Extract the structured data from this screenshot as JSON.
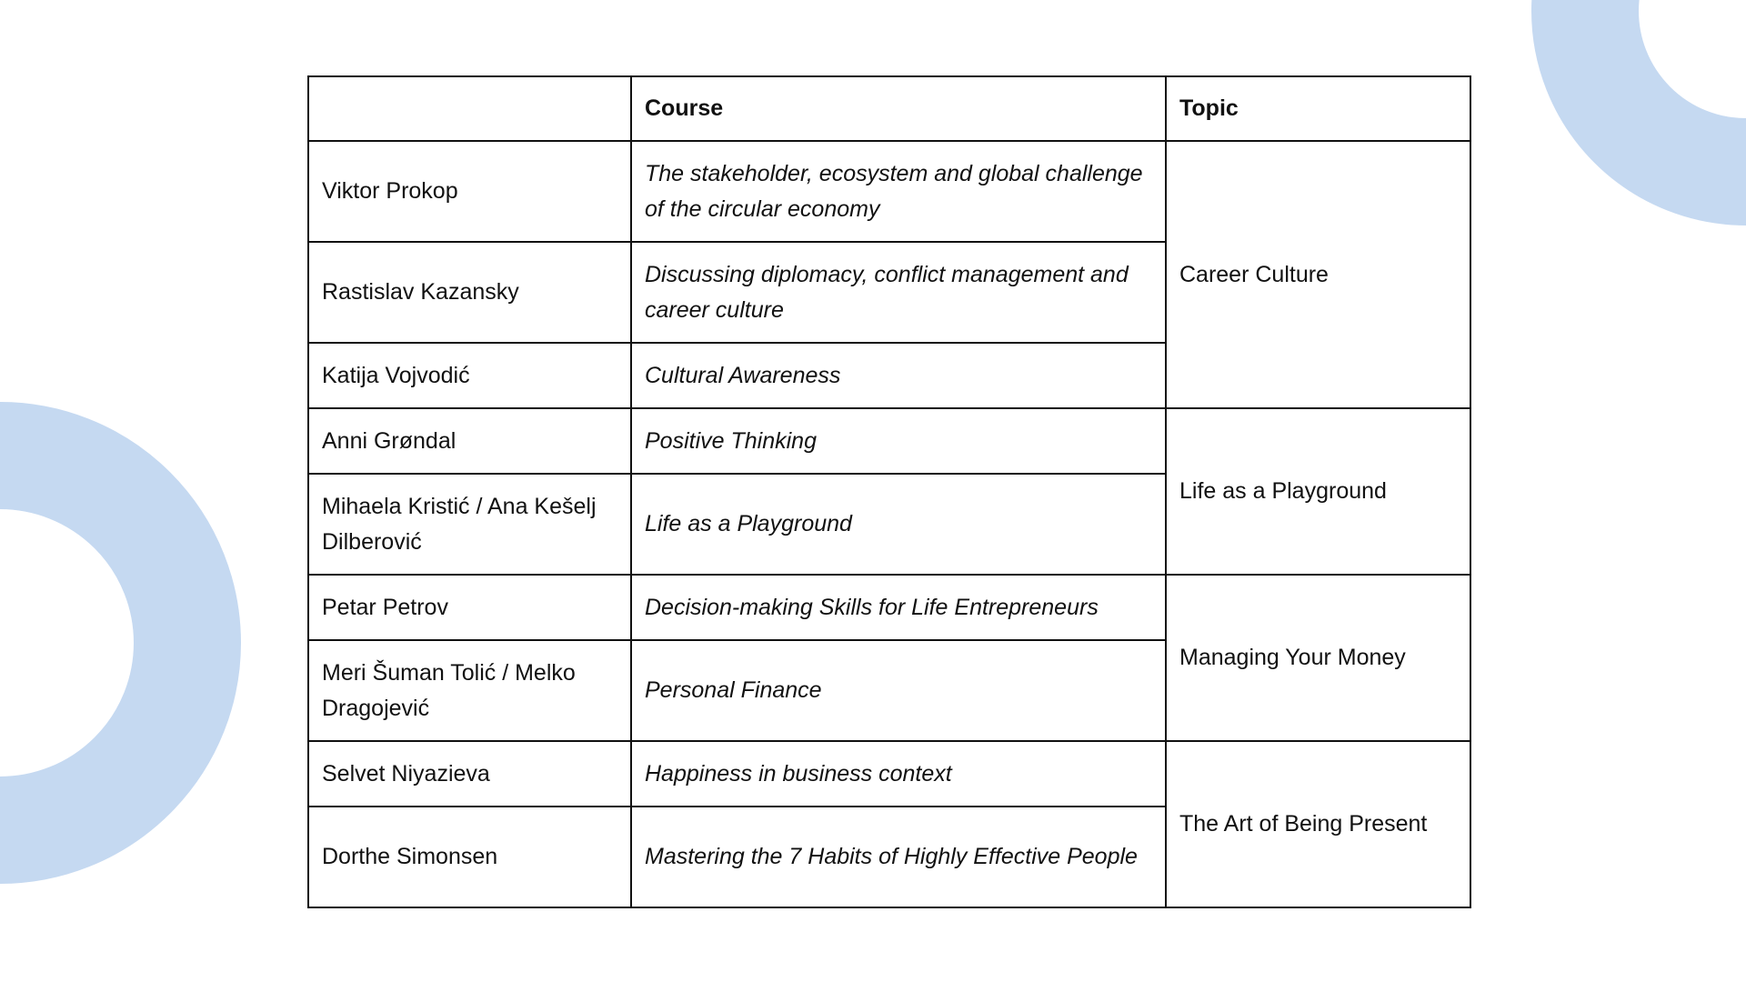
{
  "colors": {
    "accent": "#c5d9f1",
    "border": "#111111"
  },
  "table": {
    "headers": [
      "",
      "Course",
      "Topic"
    ],
    "rows": [
      {
        "name": "Viktor Prokop",
        "course": "The stakeholder, ecosystem and global challenge of the circular economy",
        "topic": "Career Culture"
      },
      {
        "name": "Rastislav Kazansky",
        "course": "Discussing diplomacy, conflict management and career culture"
      },
      {
        "name": "Katija Vojvodić",
        "course": "Cultural Awareness"
      },
      {
        "name": "Anni Grøndal",
        "course": "Positive Thinking",
        "topic": "Life as a Playground"
      },
      {
        "name": "Mihaela Kristić / Ana Kešelj Dilberović",
        "course": "Life as a Playground"
      },
      {
        "name": "Petar Petrov",
        "course": "Decision-making Skills for Life Entrepreneurs",
        "topic": "Managing Your Money"
      },
      {
        "name": "Meri Šuman Tolić / Melko Dragojević",
        "course": "Personal Finance"
      },
      {
        "name": "Selvet Niyazieva",
        "course": "Happiness in business context",
        "topic": "The Art of Being Present"
      },
      {
        "name": "Dorthe Simonsen",
        "course": "Mastering the 7 Habits of Highly Effective People"
      }
    ]
  }
}
